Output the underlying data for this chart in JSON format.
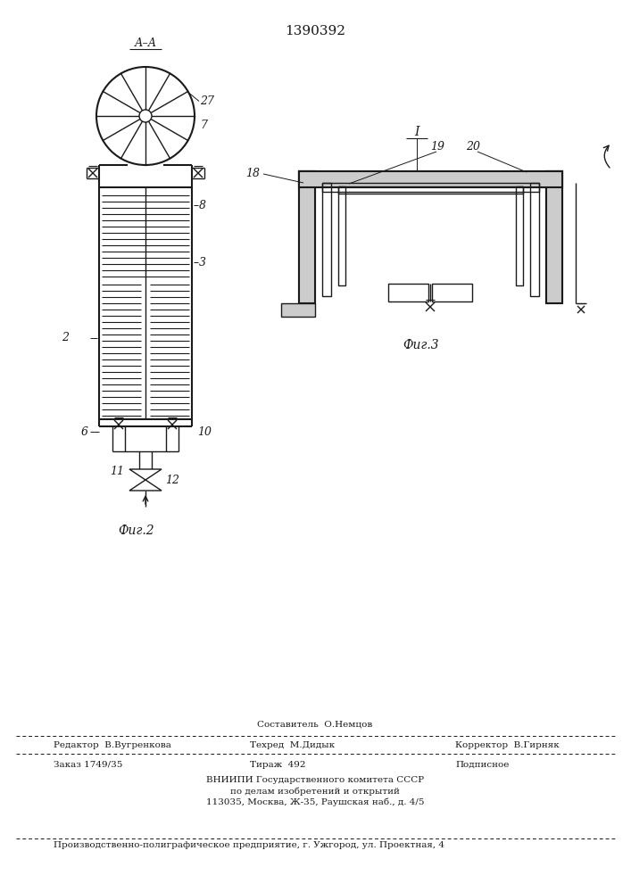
{
  "title": "1390392",
  "title_fontsize": 11,
  "bg_color": "#ffffff",
  "line_color": "#1a1a1a",
  "fig2_label": "Фиг.2",
  "fig3_label": "Фиг.3",
  "section_label": "А–А",
  "footer_line1": "Составитель  О.Немцов",
  "footer_line2_left": "Редактор  В.Вугренкова",
  "footer_line2_mid": "Техред  М.Дидык",
  "footer_line2_right": "Корректор  В.Гирняк",
  "footer_line3_left": "Заказ 1749/35",
  "footer_line3_mid": "Тираж  492",
  "footer_line3_right": "Подписное",
  "footer_line4": "ВНИИПИ Государственного комитета СССР",
  "footer_line5": "по делам изобретений и открытий",
  "footer_line6": "113035, Москва, Ж-35, Раушская наб., д. 4/5",
  "footer_bottom": "Производственно-полиграфическое предприятие, г. Ужгород, ул. Проектная, 4"
}
